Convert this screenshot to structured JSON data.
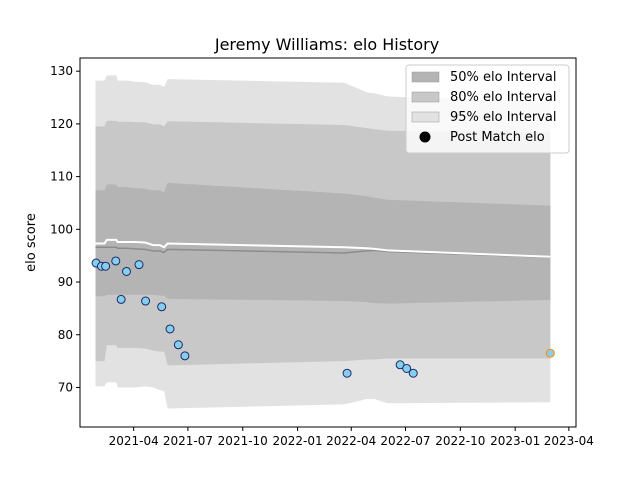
{
  "chart_data": {
    "type": "area",
    "title": "Jeremy Williams: elo History",
    "xlabel": "",
    "ylabel": "elo score",
    "xlim": [
      "2021-01-01",
      "2023-04-13"
    ],
    "ylim": [
      62.5,
      132.5
    ],
    "grid": false,
    "legend_position": "top-right",
    "x_ticks": [
      "2021-04",
      "2021-07",
      "2021-10",
      "2022-01",
      "2022-04",
      "2022-07",
      "2022-10",
      "2023-01",
      "2023-04"
    ],
    "y_ticks": [
      70,
      80,
      90,
      100,
      110,
      120,
      130
    ],
    "bands": [
      {
        "name": "95% elo Interval",
        "color": "#e2e2e2",
        "x": [
          "2021-01-27",
          "2021-02-11",
          "2021-02-15",
          "2021-03-03",
          "2021-03-05",
          "2021-03-21",
          "2021-04-04",
          "2021-04-20",
          "2021-05-04",
          "2021-05-15",
          "2021-05-22",
          "2021-05-28",
          "2022-03-20",
          "2022-04-27",
          "2022-05-10",
          "2022-06-01",
          "2023-03-01"
        ],
        "upper": [
          128.2,
          128.2,
          129.2,
          129.2,
          128.2,
          128.2,
          128.0,
          127.9,
          127.4,
          127.4,
          127.0,
          128.5,
          127.8,
          126.0,
          125.8,
          125.2,
          124.2
        ],
        "lower": [
          70.2,
          70.2,
          71.0,
          71.0,
          70.0,
          70.0,
          70.0,
          70.2,
          70.0,
          69.5,
          69.3,
          66.0,
          66.8,
          67.8,
          67.8,
          67.0,
          67.2
        ]
      },
      {
        "name": "80% elo Interval",
        "color": "#c8c8c8",
        "x": [
          "2021-01-27",
          "2021-02-11",
          "2021-02-15",
          "2021-03-03",
          "2021-03-05",
          "2021-03-21",
          "2021-04-04",
          "2021-04-20",
          "2021-05-04",
          "2021-05-15",
          "2021-05-22",
          "2021-05-28",
          "2022-03-20",
          "2022-04-27",
          "2022-05-10",
          "2022-06-01",
          "2023-03-01"
        ],
        "upper": [
          119.5,
          119.5,
          120.6,
          120.6,
          120.4,
          120.4,
          120.3,
          120.3,
          119.9,
          119.9,
          119.5,
          120.5,
          119.8,
          119.2,
          119.0,
          118.7,
          118.4
        ],
        "lower": [
          75.0,
          75.0,
          78.0,
          78.0,
          77.5,
          77.5,
          77.5,
          77.4,
          77.0,
          76.8,
          76.8,
          74.2,
          75.0,
          75.3,
          75.3,
          75.5,
          75.5
        ]
      },
      {
        "name": "50% elo Interval",
        "color": "#b4b4b4",
        "x": [
          "2021-01-27",
          "2021-02-11",
          "2021-02-15",
          "2021-03-03",
          "2021-03-05",
          "2021-03-21",
          "2021-04-04",
          "2021-04-20",
          "2021-05-04",
          "2021-05-15",
          "2021-05-22",
          "2021-05-28",
          "2022-03-20",
          "2022-04-27",
          "2022-05-10",
          "2022-06-01",
          "2023-03-01"
        ],
        "upper": [
          107.4,
          107.4,
          108.5,
          108.5,
          108.0,
          108.0,
          107.8,
          107.7,
          107.4,
          107.4,
          107.0,
          108.8,
          106.8,
          106.3,
          106.0,
          105.6,
          104.5
        ],
        "lower": [
          87.3,
          87.3,
          87.6,
          87.6,
          87.6,
          87.6,
          87.6,
          87.6,
          87.6,
          87.4,
          87.4,
          86.8,
          86.4,
          86.2,
          86.0,
          85.9,
          86.6
        ]
      }
    ],
    "mean_line": {
      "color": "#ffffff",
      "x": [
        "2021-01-27",
        "2021-02-11",
        "2021-02-15",
        "2021-03-03",
        "2021-03-05",
        "2021-03-21",
        "2021-04-04",
        "2021-04-20",
        "2021-05-04",
        "2021-05-15",
        "2021-05-22",
        "2021-05-28",
        "2022-03-20",
        "2022-04-27",
        "2022-05-10",
        "2022-06-01",
        "2023-03-01"
      ],
      "y": [
        97.3,
        97.3,
        98.0,
        98.0,
        97.6,
        97.6,
        97.6,
        97.5,
        97.0,
        97.0,
        96.6,
        97.3,
        96.6,
        96.4,
        96.3,
        96.0,
        94.8
      ]
    },
    "median_line": {
      "color": "#8c8c8c",
      "x": [
        "2021-01-27",
        "2021-02-11",
        "2021-02-15",
        "2021-03-03",
        "2021-03-05",
        "2021-03-21",
        "2021-04-04",
        "2021-04-20",
        "2021-05-04",
        "2021-05-15",
        "2021-05-22",
        "2021-05-28",
        "2022-03-20",
        "2022-04-27",
        "2022-05-10",
        "2022-06-01",
        "2023-03-01"
      ],
      "y": [
        96.6,
        96.6,
        96.6,
        96.6,
        96.4,
        96.4,
        96.3,
        96.2,
        95.9,
        95.9,
        95.6,
        96.2,
        95.5,
        95.9,
        96.0,
        95.8,
        94.7
      ]
    },
    "points": {
      "name": "Post Match elo",
      "fill": "#87ceeb",
      "edge": "#1a2a6c",
      "x": [
        "2021-01-28",
        "2021-02-06",
        "2021-02-13",
        "2021-03-02",
        "2021-03-11",
        "2021-03-20",
        "2021-04-10",
        "2021-04-21",
        "2021-05-18",
        "2021-06-01",
        "2021-06-15",
        "2021-06-26",
        "2022-03-25",
        "2022-06-22",
        "2022-07-03",
        "2022-07-14"
      ],
      "y": [
        93.6,
        93.0,
        93.0,
        94.0,
        86.7,
        92.0,
        93.3,
        86.4,
        85.3,
        81.1,
        78.1,
        76.0,
        72.7,
        74.3,
        73.6,
        72.7
      ]
    },
    "final_point": {
      "x": "2023-03-01",
      "y": 76.5,
      "fill": "#87ceeb",
      "edge": "#ff8c00"
    },
    "legend": [
      {
        "label": "50% elo Interval",
        "kind": "patch",
        "color": "#b4b4b4"
      },
      {
        "label": "80% elo Interval",
        "kind": "patch",
        "color": "#c8c8c8"
      },
      {
        "label": "95% elo Interval",
        "kind": "patch",
        "color": "#e2e2e2"
      },
      {
        "label": "Post Match elo",
        "kind": "marker",
        "color": "#000000"
      }
    ]
  }
}
